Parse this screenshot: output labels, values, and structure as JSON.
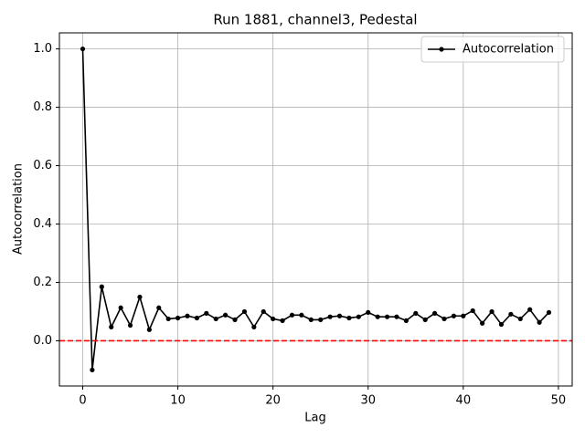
{
  "chart_data": {
    "type": "line",
    "title": "Run 1881, channel3, Pedestal",
    "xlabel": "Lag",
    "ylabel": "Autocorrelation",
    "x": [
      0,
      1,
      2,
      3,
      4,
      5,
      6,
      7,
      8,
      9,
      10,
      11,
      12,
      13,
      14,
      15,
      16,
      17,
      18,
      19,
      20,
      21,
      22,
      23,
      24,
      25,
      26,
      27,
      28,
      29,
      30,
      31,
      32,
      33,
      34,
      35,
      36,
      37,
      38,
      39,
      40,
      41,
      42,
      43,
      44,
      45,
      46,
      47,
      48,
      49
    ],
    "series": [
      {
        "name": "Autocorrelation",
        "color": "#000000",
        "marker": true,
        "values": [
          1.0,
          -0.1,
          0.185,
          0.047,
          0.113,
          0.053,
          0.15,
          0.038,
          0.113,
          0.075,
          0.078,
          0.085,
          0.078,
          0.094,
          0.075,
          0.088,
          0.072,
          0.1,
          0.047,
          0.1,
          0.075,
          0.069,
          0.088,
          0.088,
          0.072,
          0.072,
          0.082,
          0.085,
          0.078,
          0.082,
          0.097,
          0.082,
          0.082,
          0.082,
          0.069,
          0.094,
          0.072,
          0.094,
          0.075,
          0.085,
          0.085,
          0.103,
          0.06,
          0.1,
          0.056,
          0.091,
          0.075,
          0.107,
          0.063,
          0.097
        ]
      }
    ],
    "hline": {
      "value": 0,
      "color": "#ff0000",
      "dashed": true
    },
    "xlim": [
      -2.45,
      51.45
    ],
    "xticks": [
      0,
      10,
      20,
      30,
      40,
      50
    ],
    "ylim": [
      -0.155,
      1.055
    ],
    "yticks": [
      {
        "value": 0,
        "label": "0.0"
      },
      0.2,
      0.4,
      0.6,
      0.8,
      {
        "value": 1,
        "label": "1.0"
      }
    ],
    "grid": true,
    "legend": "upper right"
  }
}
